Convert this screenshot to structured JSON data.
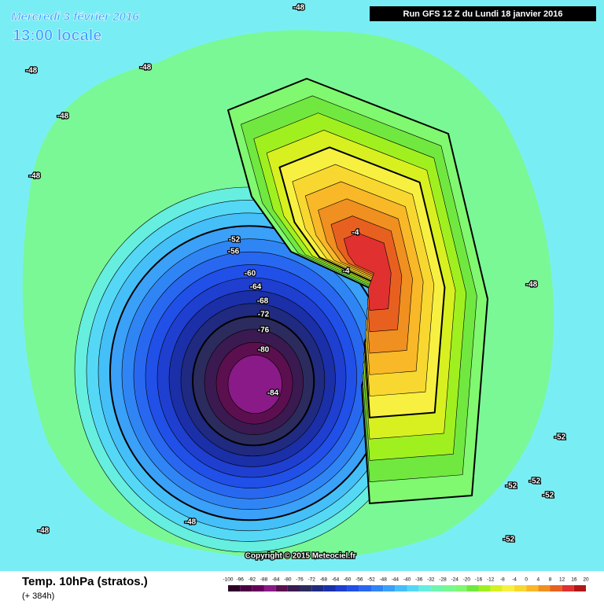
{
  "header": {
    "date": "Mercredi 3 février 2016",
    "time": "13:00 locale",
    "run": "Run GFS 12 Z du Lundi 18 janvier 2016"
  },
  "copyright": "Copyright © 2015 Meteociel.fr",
  "footer": {
    "title": "Temp. 10hPa (stratos.)",
    "subtitle": "(+ 384h)"
  },
  "legend": {
    "ticks": [
      -100,
      -96,
      -92,
      -88,
      -84,
      -80,
      -76,
      -72,
      -68,
      -64,
      -60,
      -56,
      -52,
      -48,
      -44,
      -40,
      -36,
      -32,
      -28,
      -24,
      -20,
      -16,
      -12,
      -8,
      -4,
      0,
      4,
      8,
      12,
      16,
      20
    ],
    "colors": [
      "#2d0027",
      "#4b0043",
      "#66005a",
      "#8a1a88",
      "#5c0f4f",
      "#3a1a50",
      "#2b2b5e",
      "#1f2a80",
      "#1a2fa8",
      "#1f3fd0",
      "#2050e8",
      "#2868f0",
      "#3085f5",
      "#3aa0f8",
      "#45bff8",
      "#55d8f5",
      "#66eedf",
      "#70f5b0",
      "#78f890",
      "#80f870",
      "#70e840",
      "#a0f020",
      "#d8f020",
      "#f8f040",
      "#f8d830",
      "#f8b828",
      "#f09020",
      "#e86020",
      "#e03030",
      "#b01818"
    ]
  },
  "map_labels": [
    "-48",
    "-48",
    "-48",
    "-48",
    "-48",
    "-52",
    "-56",
    "-60",
    "-64",
    "-68",
    "-72",
    "-76",
    "-80",
    "-84",
    "-4",
    "-4",
    "-48",
    "-48",
    "-48",
    "-52",
    "-52",
    "-52",
    "-52",
    "-52"
  ]
}
